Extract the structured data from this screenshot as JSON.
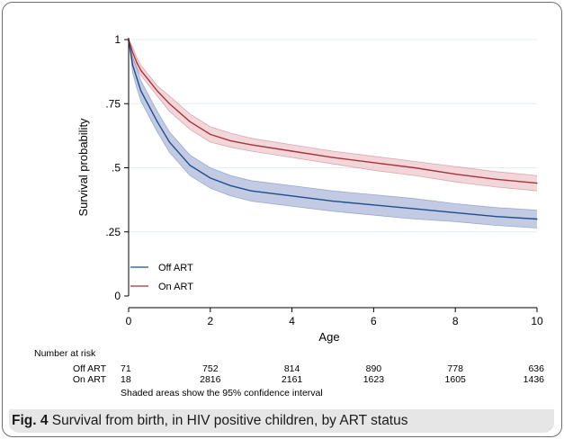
{
  "chart_data": {
    "type": "line",
    "title": "",
    "xlabel": "Age",
    "ylabel": "Survival probability",
    "xlim": [
      0,
      10
    ],
    "ylim": [
      0,
      1
    ],
    "xticks": [
      0,
      2,
      4,
      6,
      8,
      10
    ],
    "xtick_labels": [
      "0",
      "2",
      "4",
      "6",
      "8",
      "10"
    ],
    "yticks": [
      0,
      0.25,
      0.5,
      0.75,
      1
    ],
    "ytick_labels": [
      "0",
      ".25",
      ".5",
      ".75",
      "1"
    ],
    "grid": "horizontal",
    "legend_position": "bottom-left",
    "x": [
      0,
      0.1,
      0.2,
      0.3,
      0.5,
      0.7,
      1,
      1.5,
      2,
      2.5,
      3,
      4,
      5,
      6,
      7,
      8,
      9,
      10
    ],
    "series": [
      {
        "name": "Off ART",
        "color": "#1f4e8c",
        "band_color": "#aeb9d9",
        "values": [
          1.0,
          0.9,
          0.85,
          0.8,
          0.74,
          0.68,
          0.6,
          0.51,
          0.46,
          0.43,
          0.41,
          0.39,
          0.37,
          0.355,
          0.34,
          0.325,
          0.31,
          0.3
        ],
        "lower": [
          1.0,
          0.87,
          0.81,
          0.76,
          0.7,
          0.64,
          0.56,
          0.47,
          0.42,
          0.39,
          0.37,
          0.35,
          0.33,
          0.315,
          0.3,
          0.29,
          0.275,
          0.265
        ],
        "upper": [
          1.0,
          0.93,
          0.89,
          0.84,
          0.78,
          0.72,
          0.64,
          0.55,
          0.5,
          0.47,
          0.45,
          0.43,
          0.41,
          0.395,
          0.38,
          0.36,
          0.345,
          0.335
        ]
      },
      {
        "name": "On ART",
        "color": "#a8323f",
        "band_color": "#efc8cc",
        "values": [
          1.0,
          0.95,
          0.91,
          0.88,
          0.84,
          0.8,
          0.75,
          0.68,
          0.63,
          0.605,
          0.59,
          0.565,
          0.54,
          0.52,
          0.5,
          0.475,
          0.455,
          0.44
        ],
        "lower": [
          1.0,
          0.93,
          0.89,
          0.86,
          0.82,
          0.78,
          0.72,
          0.65,
          0.6,
          0.58,
          0.565,
          0.54,
          0.515,
          0.49,
          0.47,
          0.445,
          0.425,
          0.41
        ],
        "upper": [
          1.0,
          0.97,
          0.93,
          0.9,
          0.86,
          0.82,
          0.78,
          0.71,
          0.66,
          0.635,
          0.615,
          0.59,
          0.565,
          0.545,
          0.525,
          0.505,
          0.485,
          0.47
        ]
      }
    ],
    "risk_table": {
      "header": "Number at risk",
      "times": [
        0,
        2,
        4,
        6,
        8,
        10
      ],
      "rows": [
        {
          "label": "Off ART",
          "values": [
            "71",
            "752",
            "814",
            "890",
            "778",
            "636"
          ]
        },
        {
          "label": "On ART",
          "values": [
            "18",
            "2816",
            "2161",
            "1623",
            "1605",
            "1436"
          ]
        }
      ]
    },
    "note": "Shaded areas show the 95% confidence interval"
  },
  "caption": {
    "fig_label": "Fig. 4",
    "text": " Survival from birth, in HIV positive children, by ART status"
  }
}
